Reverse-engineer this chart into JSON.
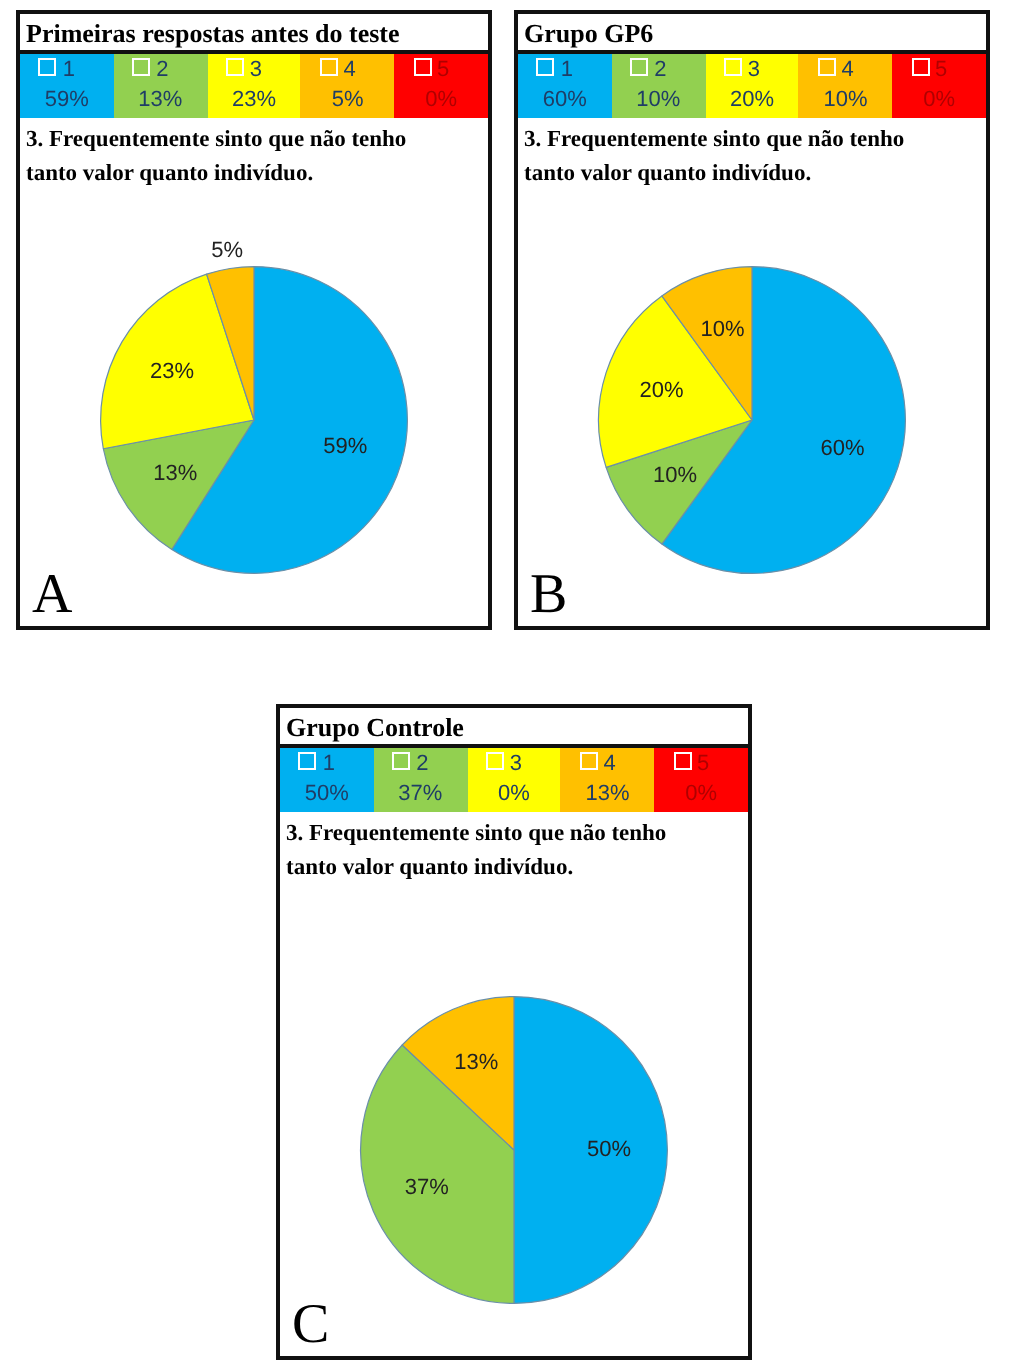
{
  "chart_data": [
    {
      "type": "pie",
      "title": "Primeiras respostas antes do teste",
      "subtitle": "3. Frequentemente sinto que não tenho tanto valor quanto indivíduo.",
      "categories": [
        "1",
        "2",
        "3",
        "4",
        "5"
      ],
      "values": [
        59,
        13,
        23,
        5,
        0
      ],
      "value_labels": [
        "59%",
        "13%",
        "23%",
        "5%",
        "0%"
      ],
      "colors": [
        "#00b0f0",
        "#92d050",
        "#ffff00",
        "#ffc000",
        "#ff0000"
      ],
      "legend": "top",
      "annotations": [
        "A"
      ]
    },
    {
      "type": "pie",
      "title": "Grupo GP6",
      "subtitle": "3. Frequentemente sinto que não tenho tanto valor quanto indivíduo.",
      "categories": [
        "1",
        "2",
        "3",
        "4",
        "5"
      ],
      "values": [
        60,
        10,
        20,
        10,
        0
      ],
      "value_labels": [
        "60%",
        "10%",
        "20%",
        "10%",
        "0%"
      ],
      "colors": [
        "#00b0f0",
        "#92d050",
        "#ffff00",
        "#ffc000",
        "#ff0000"
      ],
      "legend": "top",
      "annotations": [
        "B"
      ]
    },
    {
      "type": "pie",
      "title": "Grupo Controle",
      "subtitle": "3. Frequentemente sinto que não tenho tanto valor quanto indivíduo.",
      "categories": [
        "1",
        "2",
        "3",
        "4",
        "5"
      ],
      "values": [
        50,
        37,
        0,
        13,
        0
      ],
      "value_labels": [
        "50%",
        "37%",
        "0%",
        "13%",
        "0%"
      ],
      "colors": [
        "#00b0f0",
        "#92d050",
        "#ffff00",
        "#ffc000",
        "#ff0000"
      ],
      "legend": "top",
      "annotations": [
        "C"
      ]
    }
  ]
}
